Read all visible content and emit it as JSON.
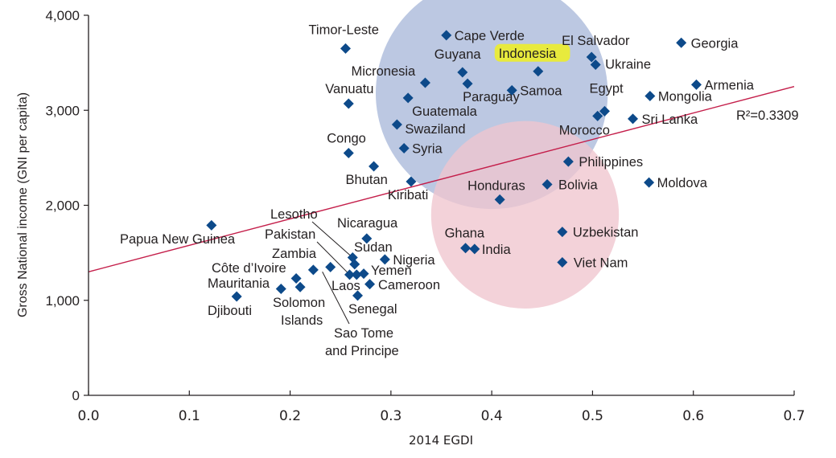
{
  "chart_data": {
    "type": "scatter",
    "title": "",
    "xlabel": "2014 EGDI",
    "ylabel": "Gross National income (GNI per capita)",
    "xlim": [
      0.0,
      0.7
    ],
    "ylim": [
      0,
      4000
    ],
    "x_ticks": [
      "0.0",
      "0.1",
      "0.2",
      "0.3",
      "0.4",
      "0.5",
      "0.6",
      "0.7"
    ],
    "y_ticks": [
      "0",
      "1,000",
      "2,000",
      "3,000",
      "4,000"
    ],
    "x_tick_values": [
      0.0,
      0.1,
      0.2,
      0.3,
      0.4,
      0.5,
      0.6,
      0.7
    ],
    "y_tick_values": [
      0,
      1000,
      2000,
      3000,
      4000
    ],
    "grid": false,
    "marker": "diamond",
    "colors": {
      "marker": "#0d4a8a",
      "trendline": "#c41e4a",
      "blue_cluster": "#a9b8da",
      "pink_cluster": "#efc5ce",
      "highlight": "#f0f020",
      "text": "#231f20"
    },
    "trendline": {
      "label": "R²=0.3309",
      "r_squared": 0.3309,
      "start": [
        0.0,
        1300
      ],
      "end": [
        0.7,
        3250
      ]
    },
    "clusters": [
      {
        "name": "upper-cluster",
        "center": [
          0.4,
          3180
        ],
        "radius_x": 0.098,
        "radius_y": 1400,
        "color": "#a9b8da"
      },
      {
        "name": "lower-cluster",
        "center": [
          0.433,
          1900
        ],
        "radius_x": 0.073,
        "radius_y": 1200,
        "color": "#efc5ce"
      }
    ],
    "points": [
      {
        "name": "Timor-Leste",
        "x": 0.255,
        "y": 3650
      },
      {
        "name": "Cape Verde",
        "x": 0.355,
        "y": 3790
      },
      {
        "name": "Guyana",
        "x": 0.371,
        "y": 3400
      },
      {
        "name": "Indonesia",
        "x": 0.446,
        "y": 3410,
        "highlight": true
      },
      {
        "name": "El Salvador",
        "x": 0.499,
        "y": 3560
      },
      {
        "name": "Ukraine",
        "x": 0.503,
        "y": 3480
      },
      {
        "name": "Georgia",
        "x": 0.588,
        "y": 3710
      },
      {
        "name": "Micronesia",
        "x": 0.334,
        "y": 3290
      },
      {
        "name": "Paraguay",
        "x": 0.376,
        "y": 3280
      },
      {
        "name": "Samoa",
        "x": 0.42,
        "y": 3210
      },
      {
        "name": "Vanuatu",
        "x": 0.258,
        "y": 3070
      },
      {
        "name": "Guatemala",
        "x": 0.317,
        "y": 3130
      },
      {
        "name": "Armenia",
        "x": 0.603,
        "y": 3270
      },
      {
        "name": "Mongolia",
        "x": 0.557,
        "y": 3150
      },
      {
        "name": "Egypt",
        "x": 0.512,
        "y": 2990
      },
      {
        "name": "Morocco",
        "x": 0.505,
        "y": 2940
      },
      {
        "name": "Sri Lanka",
        "x": 0.54,
        "y": 2910
      },
      {
        "name": "Swaziland",
        "x": 0.306,
        "y": 2850
      },
      {
        "name": "Syria",
        "x": 0.313,
        "y": 2600
      },
      {
        "name": "Congo",
        "x": 0.258,
        "y": 2550
      },
      {
        "name": "Bhutan",
        "x": 0.283,
        "y": 2410
      },
      {
        "name": "Kiribati",
        "x": 0.32,
        "y": 2250
      },
      {
        "name": "Philippines",
        "x": 0.476,
        "y": 2460
      },
      {
        "name": "Bolivia",
        "x": 0.455,
        "y": 2220
      },
      {
        "name": "Moldova",
        "x": 0.556,
        "y": 2240
      },
      {
        "name": "Honduras",
        "x": 0.408,
        "y": 2060
      },
      {
        "name": "Papua New Guinea",
        "x": 0.122,
        "y": 1790
      },
      {
        "name": "Nicaragua",
        "x": 0.276,
        "y": 1650
      },
      {
        "name": "Uzbekistan",
        "x": 0.47,
        "y": 1720
      },
      {
        "name": "Ghana",
        "x": 0.374,
        "y": 1550
      },
      {
        "name": "India",
        "x": 0.383,
        "y": 1540
      },
      {
        "name": "Lesotho",
        "x": 0.262,
        "y": 1450
      },
      {
        "name": "Nigeria",
        "x": 0.294,
        "y": 1430
      },
      {
        "name": "Sudan",
        "x": 0.264,
        "y": 1380
      },
      {
        "name": "Viet Nam",
        "x": 0.47,
        "y": 1400
      },
      {
        "name": "Zambia",
        "x": 0.24,
        "y": 1350
      },
      {
        "name": "Côte d'Ivoire",
        "x": 0.223,
        "y": 1320
      },
      {
        "name": "Pakistan",
        "x": 0.259,
        "y": 1270
      },
      {
        "name": "Laos",
        "x": 0.266,
        "y": 1270
      },
      {
        "name": "Yemen",
        "x": 0.273,
        "y": 1280
      },
      {
        "name": "Cameroon",
        "x": 0.279,
        "y": 1170
      },
      {
        "name": "Mauritania",
        "x": 0.206,
        "y": 1230
      },
      {
        "name": "Sao Tome and Principe",
        "x": 0.21,
        "y": 1140
      },
      {
        "name": "Solomon Islands",
        "x": 0.191,
        "y": 1120
      },
      {
        "name": "Senegal",
        "x": 0.267,
        "y": 1050
      },
      {
        "name": "Djibouti",
        "x": 0.147,
        "y": 1040
      }
    ],
    "annotations": [
      {
        "label": "Timor-Leste",
        "for": "Timor-Leste"
      },
      {
        "label": "Cape Verde",
        "for": "Cape Verde"
      },
      {
        "label": "Guyana",
        "for": "Guyana"
      },
      {
        "label": "Indonesia",
        "for": "Indonesia"
      },
      {
        "label": "El Salvador",
        "for": "El Salvador"
      },
      {
        "label": "Ukraine",
        "for": "Ukraine"
      },
      {
        "label": "Georgia",
        "for": "Georgia"
      },
      {
        "label": "Micronesia",
        "for": "Micronesia"
      },
      {
        "label": "Paraguay",
        "for": "Paraguay"
      },
      {
        "label": "Samoa",
        "for": "Samoa"
      },
      {
        "label": "Vanuatu",
        "for": "Vanuatu"
      },
      {
        "label": "Guatemala",
        "for": "Guatemala"
      },
      {
        "label": "Armenia",
        "for": "Armenia"
      },
      {
        "label": "Mongolia",
        "for": "Mongolia"
      },
      {
        "label": "Egypt",
        "for": "Egypt"
      },
      {
        "label": "Morocco",
        "for": "Morocco"
      },
      {
        "label": "Sri Lanka",
        "for": "Sri Lanka"
      },
      {
        "label": "Swaziland",
        "for": "Swaziland"
      },
      {
        "label": "Syria",
        "for": "Syria"
      },
      {
        "label": "Congo",
        "for": "Congo"
      },
      {
        "label": "Bhutan",
        "for": "Bhutan"
      },
      {
        "label": "Kiribati",
        "for": "Kiribati"
      },
      {
        "label": "Philippines",
        "for": "Philippines"
      },
      {
        "label": "Bolivia",
        "for": "Bolivia"
      },
      {
        "label": "Moldova",
        "for": "Moldova"
      },
      {
        "label": "Honduras",
        "for": "Honduras"
      },
      {
        "label": "Papua New Guinea",
        "for": "Papua New Guinea"
      },
      {
        "label": "Nicaragua",
        "for": "Nicaragua"
      },
      {
        "label": "Uzbekistan",
        "for": "Uzbekistan"
      },
      {
        "label": "Ghana",
        "for": "Ghana"
      },
      {
        "label": "India",
        "for": "India"
      },
      {
        "label": "Lesotho",
        "for": "Lesotho"
      },
      {
        "label": "Nigeria",
        "for": "Nigeria"
      },
      {
        "label": "Sudan",
        "for": "Sudan"
      },
      {
        "label": "Viet Nam",
        "for": "Viet Nam"
      },
      {
        "label": "Zambia",
        "for": "Zambia"
      },
      {
        "label": "Côte d’Ivoire",
        "for": "Côte d'Ivoire"
      },
      {
        "label": "Pakistan",
        "for": "Pakistan"
      },
      {
        "label": "Laos",
        "for": "Laos"
      },
      {
        "label": "Yemen",
        "for": "Yemen"
      },
      {
        "label": "Cameroon",
        "for": "Cameroon"
      },
      {
        "label": "Mauritania",
        "for": "Mauritania"
      },
      {
        "label": "Sao Tome",
        "for": "Sao Tome and Principe"
      },
      {
        "label": "and Principe",
        "for": "Sao Tome and Principe"
      },
      {
        "label": "Solomon",
        "for": "Solomon Islands"
      },
      {
        "label": "Islands",
        "for": "Solomon Islands"
      },
      {
        "label": "Senegal",
        "for": "Senegal"
      },
      {
        "label": "Djibouti",
        "for": "Djibouti"
      }
    ]
  }
}
